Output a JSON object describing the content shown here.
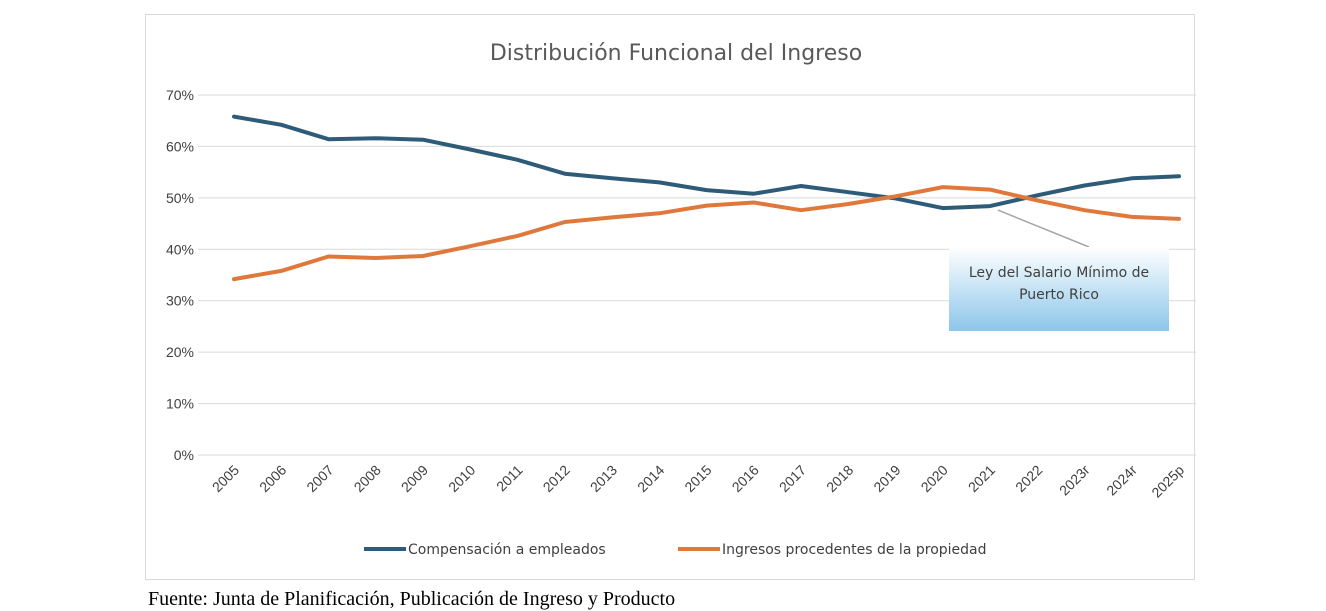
{
  "source_note": "Fuente: Junta de Planificación, Publicación de Ingreso y Producto",
  "colors": {
    "compensacion": "#2e5b78",
    "ingresos": "#e0783c",
    "grid": "#d9d9d9"
  },
  "chart_data": {
    "type": "line",
    "title": "Distribución Funcional del Ingreso",
    "xlabel": "",
    "ylabel": "",
    "categories": [
      "2005",
      "2006",
      "2007",
      "2008",
      "2009",
      "2010",
      "2011",
      "2012",
      "2013",
      "2014",
      "2015",
      "2016",
      "2017",
      "2018",
      "2019",
      "2020",
      "2021",
      "2022",
      "2023r",
      "2024r",
      "2025p"
    ],
    "yticks": [
      "0%",
      "10%",
      "20%",
      "30%",
      "40%",
      "50%",
      "60%",
      "70%"
    ],
    "ylim": [
      0,
      70
    ],
    "grid": true,
    "legend": "bottom",
    "series": [
      {
        "name": "Compensación a empleados",
        "color": "#2e5b78",
        "values": [
          65.8,
          64.2,
          61.4,
          61.6,
          61.3,
          59.4,
          57.4,
          54.7,
          53.8,
          53.0,
          51.5,
          50.8,
          52.3,
          51.1,
          49.9,
          48.0,
          48.4,
          50.5,
          52.4,
          53.8,
          54.2
        ]
      },
      {
        "name": "Ingresos procedentes de la propiedad",
        "color": "#e0783c",
        "values": [
          34.2,
          35.8,
          38.6,
          38.3,
          38.7,
          40.6,
          42.6,
          45.3,
          46.2,
          47.0,
          48.5,
          49.1,
          47.6,
          48.8,
          50.3,
          52.1,
          51.6,
          49.5,
          47.6,
          46.3,
          45.9
        ]
      }
    ],
    "annotation": {
      "text_lines": [
        "Ley del Salario Mínimo de",
        "Puerto Rico"
      ],
      "target_category": "2021"
    }
  }
}
